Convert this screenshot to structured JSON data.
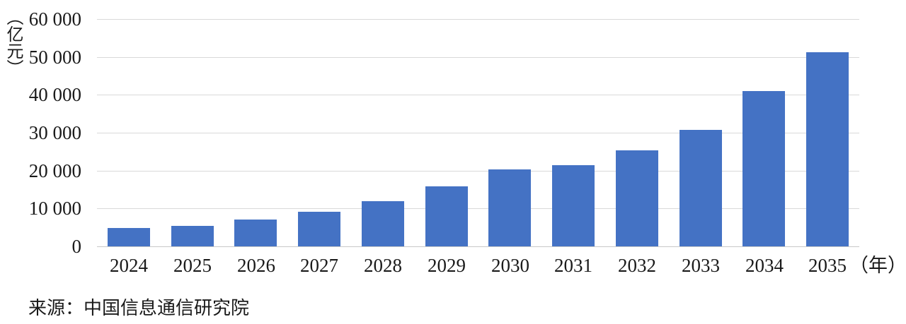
{
  "chart_data": {
    "type": "bar",
    "title": "",
    "categories": [
      "2024",
      "2025",
      "2026",
      "2027",
      "2028",
      "2029",
      "2030",
      "2031",
      "2032",
      "2033",
      "2034",
      "2035"
    ],
    "values": [
      4800,
      5400,
      7100,
      9200,
      12000,
      15900,
      20300,
      21500,
      25400,
      30800,
      41000,
      51200
    ],
    "ylabel": "（亿元）",
    "xlabel": "（年）",
    "ylim": [
      0,
      60000
    ],
    "ytick_interval": 10000,
    "ytick_labels": [
      "0",
      "10 000",
      "20 000",
      "30 000",
      "40 000",
      "50 000",
      "60 000"
    ],
    "grid": true,
    "legend_position": "none",
    "bar_color": "#4472c4",
    "grid_color": "#d9d9d9",
    "zero_line_color": "#c9c9c9",
    "text_color": "#1a1a1a"
  },
  "source": {
    "label": "来源：中国信息通信研究院"
  }
}
